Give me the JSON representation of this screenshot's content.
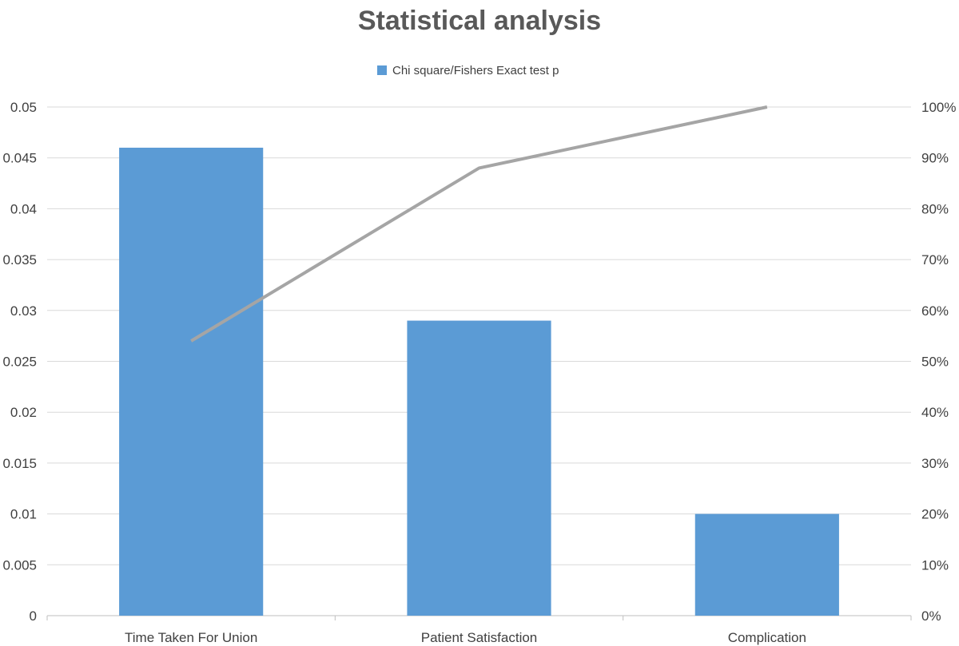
{
  "chart_data": {
    "type": "bar",
    "title": "Statistical analysis",
    "categories": [
      "Time Taken For Union",
      "Patient Satisfaction",
      "Complication"
    ],
    "series": [
      {
        "name": "Chi square/Fishers Exact test p",
        "type": "bar",
        "axis": "primary",
        "values": [
          0.046,
          0.029,
          0.01
        ],
        "color": "#5b9bd5"
      },
      {
        "type": "line",
        "axis": "secondary",
        "values": [
          0.54,
          0.88,
          1.0
        ],
        "color": "#a5a5a5"
      }
    ],
    "ylim": [
      0,
      0.05
    ],
    "y_ticks": [
      "0",
      "0.005",
      "0.01",
      "0.015",
      "0.02",
      "0.025",
      "0.03",
      "0.035",
      "0.04",
      "0.045",
      "0.05"
    ],
    "y2lim": [
      0,
      1
    ],
    "y2_ticks": [
      "0%",
      "10%",
      "20%",
      "30%",
      "40%",
      "50%",
      "60%",
      "70%",
      "80%",
      "90%",
      "100%"
    ],
    "grid": true,
    "legend_position": "top-center"
  }
}
